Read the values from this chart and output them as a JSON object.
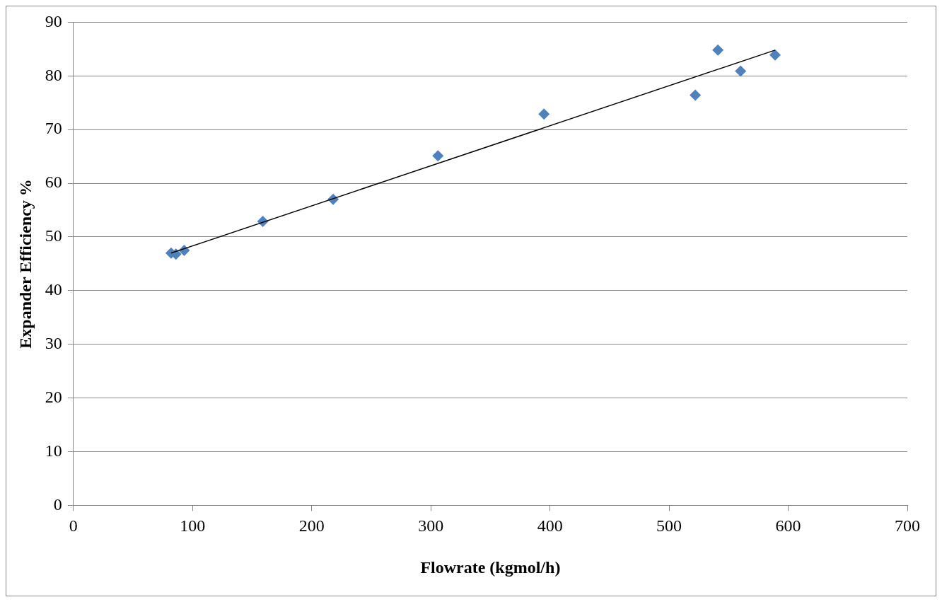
{
  "chart_data": {
    "type": "scatter",
    "xlabel": "Flowrate (kgmol/h)",
    "ylabel": "Expander Efficiency %",
    "series": [
      {
        "color": "#4f81bd",
        "marker": "diamond",
        "x": [
          82,
          86,
          93,
          159,
          218,
          306,
          395,
          522,
          541,
          560,
          589
        ],
        "values": [
          47.0,
          46.8,
          47.5,
          52.9,
          57.0,
          65.1,
          72.9,
          76.4,
          84.8,
          80.9,
          83.9
        ]
      },
      {
        "type": "line",
        "color": "#000000",
        "marker": "none",
        "x": [
          82,
          589
        ],
        "values": [
          47.0,
          84.8
        ]
      }
    ],
    "xlim": [
      0,
      700
    ],
    "xticks": [
      0,
      100,
      200,
      300,
      400,
      500,
      600,
      700
    ],
    "ylim": [
      0,
      90
    ],
    "yticks": [
      0,
      10,
      20,
      30,
      40,
      50,
      60,
      70,
      80,
      90
    ],
    "grid": "y",
    "legend": false
  }
}
